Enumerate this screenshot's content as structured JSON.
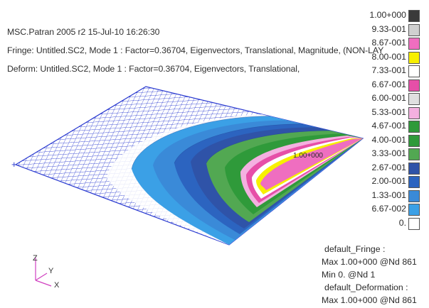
{
  "header": {
    "title": "MSC.Patran 2005 r2 15-Jul-10 16:26:30",
    "fringe": "Fringe: Untitled.SC2, Mode 1 : Factor=0.36704, Eigenvectors, Translational, Magnitude, (NON-LAY",
    "deform": "Deform: Untitled.SC2, Mode 1 : Factor=0.36704, Eigenvectors, Translational,"
  },
  "plot": {
    "max_marker": "1.00+000",
    "node_marker": "+"
  },
  "legend": {
    "levels": [
      {
        "label": "1.00+000",
        "color": "#3a3a3a"
      },
      {
        "label": "9.33-001",
        "color": "#d0d0d0"
      },
      {
        "label": "8.67-001",
        "color": "#ef6ec0"
      },
      {
        "label": "8.00-001",
        "color": "#f7f000"
      },
      {
        "label": "7.33-001",
        "color": "#ffffff"
      },
      {
        "label": "6.67-001",
        "color": "#e64fa8"
      },
      {
        "label": "6.00-001",
        "color": "#e0e0e0"
      },
      {
        "label": "5.33-001",
        "color": "#f4b0e0"
      },
      {
        "label": "4.67-001",
        "color": "#2f9a3a"
      },
      {
        "label": "4.00-001",
        "color": "#2f9a3a"
      },
      {
        "label": "3.33-001",
        "color": "#52a852"
      },
      {
        "label": "2.67-001",
        "color": "#2f53a8"
      },
      {
        "label": "2.00-001",
        "color": "#2c64c0"
      },
      {
        "label": "1.33-001",
        "color": "#3a8ad8"
      },
      {
        "label": "6.67-002",
        "color": "#3ba0e6"
      },
      {
        "label": "0.",
        "color": "#ffffff"
      }
    ]
  },
  "info": {
    "fringe_title": "default_Fringe :",
    "fringe_max": "Max 1.00+000 @Nd 861",
    "fringe_min": "Min  0. @Nd 1",
    "deform_title": "default_Deformation :",
    "deform_max": "Max 1.00+000 @Nd 861"
  },
  "triad": {
    "z": "Z",
    "y": "Y",
    "x": "X"
  }
}
